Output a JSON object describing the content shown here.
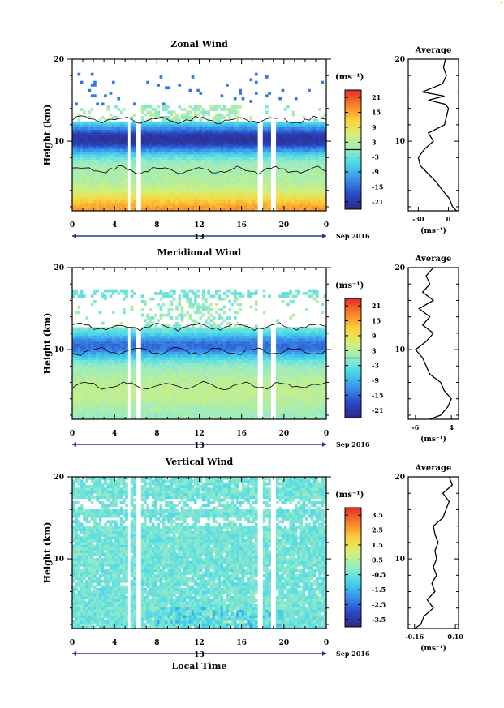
{
  "chart_data": [
    {
      "type": "heatmap",
      "title": "Zonal Wind",
      "ylabel": "Height (km)",
      "xlabel": "",
      "x_ticks": [
        "0",
        "4",
        "8",
        "12",
        "16",
        "20",
        "0"
      ],
      "y_ticks": [
        "20",
        "10"
      ],
      "xlim": [
        0,
        24
      ],
      "ylim": [
        1.5,
        20
      ],
      "date_label": "13",
      "date_suffix": "Sep 2016",
      "colorbar": {
        "unit": "(ms⁻¹)",
        "ticks": [
          "21",
          "15",
          "9",
          "3",
          "-3",
          "-9",
          "-15",
          "-21"
        ],
        "values": [
          21,
          15,
          9,
          3,
          -3,
          -9,
          -15,
          -21
        ],
        "range": [
          -24,
          24
        ],
        "zero_line": true
      },
      "gaps_hours": [
        [
          5.2,
          5.5
        ],
        [
          6.0,
          6.4
        ],
        [
          17.6,
          18.0
        ],
        [
          18.8,
          19.2
        ]
      ],
      "field": "zonal",
      "profile": {
        "title": "Average",
        "xlabel": "(ms⁻¹)",
        "x_ticks": [
          "-30",
          "0"
        ],
        "x_tick_values": [
          -30,
          0
        ],
        "xlim": [
          -40,
          10
        ],
        "y_ticks": [
          "20",
          "10"
        ],
        "heights": [
          1.5,
          2,
          3,
          4,
          5,
          6,
          7,
          8,
          9,
          10,
          11,
          12,
          13,
          14,
          14.5,
          15,
          15.5,
          16,
          17,
          18,
          19,
          20
        ],
        "values": [
          8,
          4,
          1,
          -6,
          -12,
          -20,
          -28,
          -30,
          -24,
          -15,
          -20,
          -4,
          -2,
          0,
          -3,
          -20,
          -4,
          -26,
          -6,
          -2,
          -5,
          -3
        ]
      }
    },
    {
      "type": "heatmap",
      "title": "Meridional Wind",
      "ylabel": "Height (km)",
      "xlabel": "",
      "x_ticks": [
        "0",
        "4",
        "8",
        "12",
        "16",
        "20",
        "0"
      ],
      "y_ticks": [
        "20",
        "10"
      ],
      "xlim": [
        0,
        24
      ],
      "ylim": [
        1.5,
        20
      ],
      "date_label": "13",
      "date_suffix": "Sep 2016",
      "colorbar": {
        "unit": "(ms⁻¹)",
        "ticks": [
          "21",
          "15",
          "9",
          "3",
          "-3",
          "-9",
          "-15",
          "-21"
        ],
        "values": [
          21,
          15,
          9,
          3,
          -3,
          -9,
          -15,
          -21
        ],
        "range": [
          -24,
          24
        ],
        "zero_line": true
      },
      "gaps_hours": [
        [
          5.2,
          5.5
        ],
        [
          6.0,
          6.4
        ],
        [
          17.6,
          18.0
        ],
        [
          18.8,
          19.2
        ]
      ],
      "field": "meridional",
      "profile": {
        "title": "Average",
        "xlabel": "(ms⁻¹)",
        "x_ticks": [
          "-6",
          "4"
        ],
        "x_tick_values": [
          -6,
          4
        ],
        "xlim": [
          -8,
          6
        ],
        "y_ticks": [
          "20",
          "10"
        ],
        "heights": [
          1.5,
          2,
          3,
          4,
          5,
          6,
          7,
          8,
          9,
          10,
          11,
          12,
          13,
          14,
          15,
          16,
          17,
          18,
          19,
          20
        ],
        "values": [
          -2,
          1,
          3,
          4,
          2,
          1,
          -2,
          -3,
          -4,
          -6,
          -3,
          -1,
          -4,
          -2,
          -5,
          -1,
          -4,
          -2,
          -3,
          -1
        ]
      }
    },
    {
      "type": "heatmap",
      "title": "Vertical Wind",
      "ylabel": "Height (km)",
      "xlabel": "Local Time",
      "x_ticks": [
        "0",
        "4",
        "8",
        "12",
        "16",
        "20",
        "0"
      ],
      "y_ticks": [
        "20",
        "10"
      ],
      "xlim": [
        0,
        24
      ],
      "ylim": [
        1.5,
        20
      ],
      "date_label": "13",
      "date_suffix": "Sep 2016",
      "colorbar": {
        "unit": "(ms⁻¹)",
        "ticks": [
          "3.5",
          "2.5",
          "1.5",
          "0.5",
          "-0.5",
          "-1.5",
          "-2.5",
          "-3.5"
        ],
        "values": [
          3.5,
          2.5,
          1.5,
          0.5,
          -0.5,
          -1.5,
          -2.5,
          -3.5
        ],
        "range": [
          -4,
          4
        ],
        "zero_line": false
      },
      "gaps_hours": [
        [
          5.2,
          5.5
        ],
        [
          6.0,
          6.4
        ],
        [
          17.6,
          18.0
        ],
        [
          18.8,
          19.2
        ]
      ],
      "field": "vertical",
      "profile": {
        "title": "Average",
        "xlabel": "(ms⁻¹)",
        "x_ticks": [
          "-0.16",
          "0.10"
        ],
        "x_tick_values": [
          -0.16,
          0.1
        ],
        "xlim": [
          -0.2,
          0.12
        ],
        "y_ticks": [
          "20",
          "10"
        ],
        "heights": [
          1.5,
          2,
          3,
          4,
          5,
          6,
          7,
          8,
          9,
          10,
          11,
          12,
          13,
          14,
          15,
          16,
          17,
          18,
          19,
          20
        ],
        "values": [
          -0.16,
          -0.12,
          -0.1,
          -0.04,
          -0.08,
          -0.03,
          -0.05,
          -0.02,
          -0.04,
          -0.02,
          -0.03,
          -0.01,
          -0.03,
          -0.04,
          0.02,
          0.04,
          0.06,
          0.02,
          0.08,
          0.06
        ]
      }
    }
  ]
}
